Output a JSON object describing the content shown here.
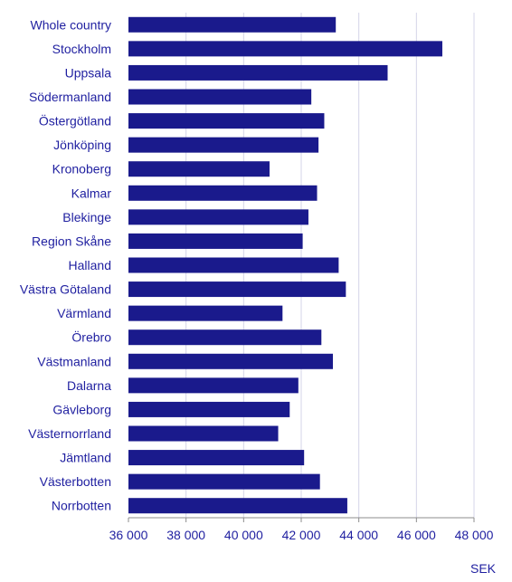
{
  "chart_data": {
    "type": "bar",
    "orientation": "horizontal",
    "categories": [
      "Whole country",
      "Stockholm",
      "Uppsala",
      "Södermanland",
      "Östergötland",
      "Jönköping",
      "Kronoberg",
      "Kalmar",
      "Blekinge",
      "Region Skåne",
      "Halland",
      "Västra Götaland",
      "Värmland",
      "Örebro",
      "Västmanland",
      "Dalarna",
      "Gävleborg",
      "Västernorrland",
      "Jämtland",
      "Västerbotten",
      "Norrbotten"
    ],
    "values": [
      43200,
      46900,
      45000,
      42350,
      42800,
      42600,
      40900,
      42550,
      42250,
      42050,
      43300,
      43550,
      41350,
      42700,
      43100,
      41900,
      41600,
      41200,
      42100,
      42650,
      43600
    ],
    "xlim": [
      36000,
      48000
    ],
    "xticks": [
      36000,
      38000,
      40000,
      42000,
      44000,
      46000,
      48000
    ],
    "xtick_labels": [
      "36 000",
      "38 000",
      "40 000",
      "42 000",
      "44 000",
      "46 000",
      "48 000"
    ],
    "unit_label": "SEK",
    "grid": true,
    "colors": {
      "bar": "#1a1a8c",
      "text": "#1f1fa0",
      "grid": "#d4d4e8"
    }
  }
}
